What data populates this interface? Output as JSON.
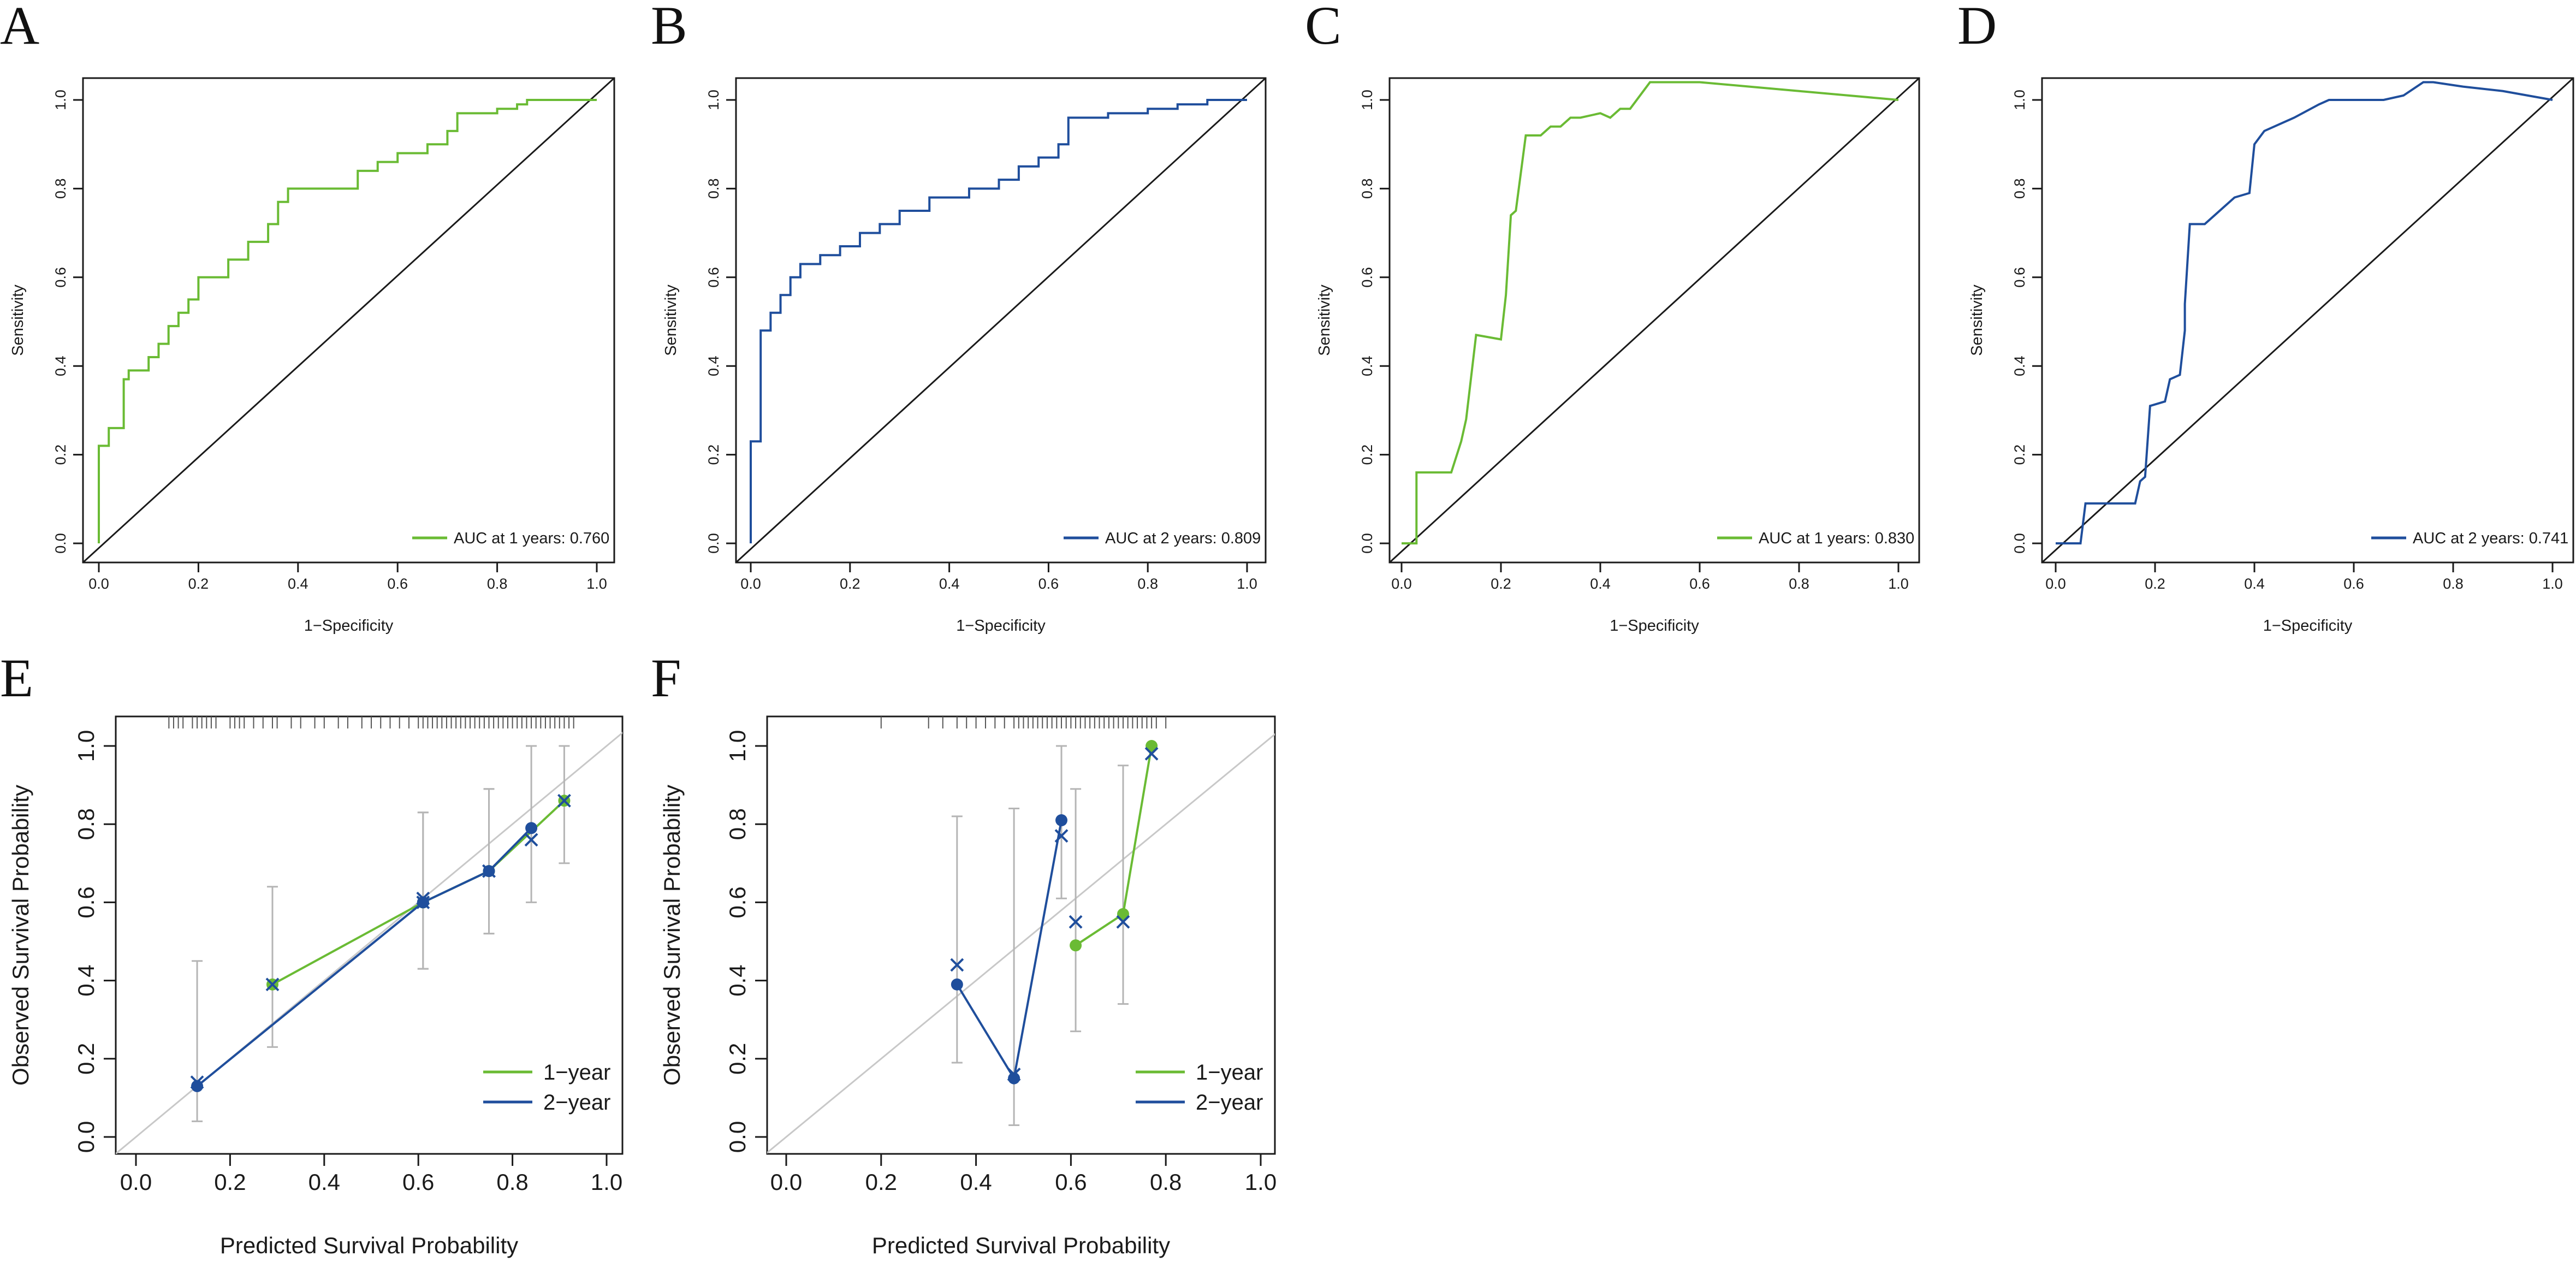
{
  "colors": {
    "green": "#6ABB34",
    "blue": "#1F4E9C",
    "axis": "#1a1a1a",
    "ref": "#c8c8c8",
    "err": "#b5b5b5"
  },
  "chart_data": [
    {
      "panel": "A",
      "type": "line",
      "xlabel": "1−Specificity",
      "ylabel": "Sensitivity",
      "xlim": [
        0,
        1
      ],
      "ylim": [
        0,
        1
      ],
      "xticks": [
        "0.0",
        "0.2",
        "0.4",
        "0.6",
        "0.8",
        "1.0"
      ],
      "yticks": [
        "0.0",
        "0.2",
        "0.4",
        "0.6",
        "0.8",
        "1.0"
      ],
      "legend_position": "bottom-right",
      "series": [
        {
          "name": "AUC at 1 years: 0.760",
          "color": "green",
          "x": [
            0.0,
            0.0,
            0.02,
            0.02,
            0.05,
            0.05,
            0.06,
            0.06,
            0.1,
            0.1,
            0.12,
            0.12,
            0.14,
            0.14,
            0.16,
            0.16,
            0.18,
            0.18,
            0.2,
            0.2,
            0.26,
            0.26,
            0.3,
            0.3,
            0.34,
            0.34,
            0.36,
            0.36,
            0.38,
            0.38,
            0.52,
            0.52,
            0.56,
            0.56,
            0.6,
            0.6,
            0.66,
            0.66,
            0.7,
            0.7,
            0.72,
            0.72,
            0.76,
            0.76,
            0.8,
            0.8,
            0.84,
            0.84,
            0.86,
            0.86,
            0.92,
            0.92,
            0.96,
            0.96,
            1.0
          ],
          "y": [
            0.0,
            0.22,
            0.22,
            0.26,
            0.26,
            0.37,
            0.37,
            0.39,
            0.39,
            0.42,
            0.42,
            0.45,
            0.45,
            0.49,
            0.49,
            0.52,
            0.52,
            0.55,
            0.55,
            0.6,
            0.6,
            0.64,
            0.64,
            0.68,
            0.68,
            0.72,
            0.72,
            0.77,
            0.77,
            0.8,
            0.8,
            0.84,
            0.84,
            0.86,
            0.86,
            0.88,
            0.88,
            0.9,
            0.9,
            0.93,
            0.93,
            0.97,
            0.97,
            0.97,
            0.97,
            0.98,
            0.98,
            0.99,
            0.99,
            1.0,
            1.0,
            1.0,
            1.0,
            1.0,
            1.0
          ]
        }
      ]
    },
    {
      "panel": "B",
      "type": "line",
      "xlabel": "1−Specificity",
      "ylabel": "Sensitivity",
      "xlim": [
        0,
        1
      ],
      "ylim": [
        0,
        1
      ],
      "xticks": [
        "0.0",
        "0.2",
        "0.4",
        "0.6",
        "0.8",
        "1.0"
      ],
      "yticks": [
        "0.0",
        "0.2",
        "0.4",
        "0.6",
        "0.8",
        "1.0"
      ],
      "legend_position": "bottom-right",
      "series": [
        {
          "name": "AUC at 2 years: 0.809",
          "color": "blue",
          "x": [
            0.0,
            0.0,
            0.02,
            0.02,
            0.04,
            0.04,
            0.06,
            0.06,
            0.08,
            0.08,
            0.1,
            0.1,
            0.14,
            0.14,
            0.18,
            0.18,
            0.22,
            0.22,
            0.26,
            0.26,
            0.3,
            0.3,
            0.36,
            0.36,
            0.44,
            0.44,
            0.5,
            0.5,
            0.54,
            0.54,
            0.58,
            0.58,
            0.62,
            0.62,
            0.64,
            0.64,
            0.72,
            0.72,
            0.8,
            0.8,
            0.86,
            0.86,
            0.92,
            0.92,
            1.0
          ],
          "y": [
            0.0,
            0.23,
            0.23,
            0.48,
            0.48,
            0.52,
            0.52,
            0.56,
            0.56,
            0.6,
            0.6,
            0.63,
            0.63,
            0.65,
            0.65,
            0.67,
            0.67,
            0.7,
            0.7,
            0.72,
            0.72,
            0.75,
            0.75,
            0.78,
            0.78,
            0.8,
            0.8,
            0.82,
            0.82,
            0.85,
            0.85,
            0.87,
            0.87,
            0.9,
            0.9,
            0.96,
            0.96,
            0.97,
            0.97,
            0.98,
            0.98,
            0.99,
            0.99,
            1.0,
            1.0
          ]
        }
      ]
    },
    {
      "panel": "C",
      "type": "line",
      "xlabel": "1−Specificity",
      "ylabel": "Sensitivity",
      "xlim": [
        0,
        1
      ],
      "ylim": [
        0,
        1
      ],
      "xticks": [
        "0.0",
        "0.2",
        "0.4",
        "0.6",
        "0.8",
        "1.0"
      ],
      "yticks": [
        "0.0",
        "0.2",
        "0.4",
        "0.6",
        "0.8",
        "1.0"
      ],
      "legend_position": "bottom-right",
      "series": [
        {
          "name": "AUC at 1 years: 0.830",
          "color": "green",
          "x": [
            0.0,
            0.03,
            0.03,
            0.1,
            0.12,
            0.13,
            0.15,
            0.2,
            0.21,
            0.22,
            0.23,
            0.25,
            0.28,
            0.3,
            0.32,
            0.34,
            0.36,
            0.4,
            0.42,
            0.44,
            0.46,
            0.5,
            0.52,
            0.56,
            0.6,
            0.7,
            0.8,
            0.9,
            1.0
          ],
          "y": [
            0.0,
            0.0,
            0.16,
            0.16,
            0.23,
            0.28,
            0.47,
            0.46,
            0.56,
            0.74,
            0.75,
            0.92,
            0.92,
            0.94,
            0.94,
            0.96,
            0.96,
            0.97,
            0.96,
            0.98,
            0.98,
            1.04,
            1.04,
            1.04,
            1.04,
            1.03,
            1.02,
            1.01,
            1.0
          ]
        }
      ]
    },
    {
      "panel": "D",
      "type": "line",
      "xlabel": "1−Specificity",
      "ylabel": "Sensitivity",
      "xlim": [
        0,
        1
      ],
      "ylim": [
        0,
        1
      ],
      "xticks": [
        "0.0",
        "0.2",
        "0.4",
        "0.6",
        "0.8",
        "1.0"
      ],
      "yticks": [
        "0.0",
        "0.2",
        "0.4",
        "0.6",
        "0.8",
        "1.0"
      ],
      "legend_position": "bottom-right",
      "series": [
        {
          "name": "AUC at 2 years: 0.741",
          "color": "blue",
          "x": [
            0.0,
            0.05,
            0.06,
            0.08,
            0.16,
            0.17,
            0.18,
            0.19,
            0.19,
            0.22,
            0.23,
            0.23,
            0.25,
            0.26,
            0.26,
            0.26,
            0.27,
            0.3,
            0.33,
            0.36,
            0.39,
            0.4,
            0.42,
            0.48,
            0.53,
            0.55,
            0.6,
            0.66,
            0.7,
            0.74,
            0.76,
            0.82,
            0.9,
            1.0
          ],
          "y": [
            0.0,
            0.0,
            0.09,
            0.09,
            0.09,
            0.14,
            0.15,
            0.31,
            0.31,
            0.32,
            0.37,
            0.37,
            0.38,
            0.48,
            0.52,
            0.54,
            0.72,
            0.72,
            0.75,
            0.78,
            0.79,
            0.9,
            0.93,
            0.96,
            0.99,
            1.0,
            1.0,
            1.0,
            1.01,
            1.04,
            1.04,
            1.03,
            1.02,
            1.0
          ]
        }
      ]
    },
    {
      "panel": "E",
      "type": "line",
      "xlabel": "Predicted Survival Probability",
      "ylabel": "Observed Survival Probability",
      "xlim": [
        0,
        1
      ],
      "ylim": [
        0,
        1
      ],
      "xticks": [
        "0.0",
        "0.2",
        "0.4",
        "0.6",
        "0.8",
        "1.0"
      ],
      "yticks": [
        "0.0",
        "0.2",
        "0.4",
        "0.6",
        "0.8",
        "1.0"
      ],
      "legend_position": "bottom-right",
      "rug": [
        0.07,
        0.08,
        0.09,
        0.1,
        0.12,
        0.13,
        0.14,
        0.15,
        0.16,
        0.17,
        0.2,
        0.21,
        0.22,
        0.23,
        0.25,
        0.27,
        0.29,
        0.3,
        0.33,
        0.35,
        0.38,
        0.4,
        0.43,
        0.45,
        0.48,
        0.5,
        0.52,
        0.54,
        0.56,
        0.58,
        0.6,
        0.61,
        0.62,
        0.63,
        0.64,
        0.65,
        0.66,
        0.67,
        0.68,
        0.69,
        0.7,
        0.71,
        0.72,
        0.73,
        0.74,
        0.75,
        0.76,
        0.77,
        0.78,
        0.79,
        0.8,
        0.81,
        0.82,
        0.83,
        0.84,
        0.85,
        0.86,
        0.87,
        0.88,
        0.89,
        0.9,
        0.91,
        0.92,
        0.93
      ],
      "series": [
        {
          "name": "1−year",
          "color": "green",
          "x": [
            0.29,
            0.61,
            0.75,
            0.91
          ],
          "y": [
            0.39,
            0.6,
            0.68,
            0.86
          ],
          "cross_y": [
            0.39,
            0.6,
            0.68,
            0.86
          ],
          "err_lo": [
            0.23,
            0.43,
            0.52,
            0.7
          ],
          "err_hi": [
            0.64,
            0.83,
            0.89,
            1.0
          ]
        },
        {
          "name": "2−year",
          "color": "blue",
          "x": [
            0.13,
            0.61,
            0.75,
            0.84
          ],
          "y": [
            0.13,
            0.6,
            0.68,
            0.79
          ],
          "cross_y": [
            0.14,
            0.61,
            0.68,
            0.76
          ],
          "err_lo": [
            0.04,
            0.43,
            0.52,
            0.6
          ],
          "err_hi": [
            0.45,
            0.83,
            0.89,
            1.0
          ]
        }
      ]
    },
    {
      "panel": "F",
      "type": "line",
      "xlabel": "Predicted Survival Probability",
      "ylabel": "Observed Survival Probability",
      "xlim": [
        0,
        1
      ],
      "ylim": [
        0,
        1
      ],
      "xticks": [
        "0.0",
        "0.2",
        "0.4",
        "0.6",
        "0.8",
        "1.0"
      ],
      "yticks": [
        "0.0",
        "0.2",
        "0.4",
        "0.6",
        "0.8",
        "1.0"
      ],
      "legend_position": "bottom-right",
      "rug": [
        0.2,
        0.3,
        0.33,
        0.36,
        0.38,
        0.4,
        0.42,
        0.44,
        0.46,
        0.48,
        0.49,
        0.5,
        0.51,
        0.52,
        0.53,
        0.54,
        0.55,
        0.56,
        0.57,
        0.58,
        0.59,
        0.6,
        0.61,
        0.62,
        0.63,
        0.64,
        0.65,
        0.66,
        0.67,
        0.68,
        0.69,
        0.7,
        0.71,
        0.72,
        0.73,
        0.74,
        0.75,
        0.76,
        0.77,
        0.78,
        0.8
      ],
      "series": [
        {
          "name": "1−year",
          "color": "green",
          "x": [
            0.61,
            0.71,
            0.77
          ],
          "y": [
            0.49,
            0.57,
            1.0
          ],
          "cross_y": [
            0.55,
            0.55,
            0.98
          ],
          "err_lo": [
            0.27,
            0.34,
            1.0
          ],
          "err_hi": [
            0.89,
            0.95,
            1.0
          ]
        },
        {
          "name": "2−year",
          "color": "blue",
          "x": [
            0.36,
            0.48,
            0.58
          ],
          "y": [
            0.39,
            0.15,
            0.81
          ],
          "cross_y": [
            0.44,
            0.16,
            0.77
          ],
          "err_lo": [
            0.19,
            0.03,
            0.61
          ],
          "err_hi": [
            0.82,
            0.84,
            1.0
          ]
        }
      ]
    }
  ]
}
